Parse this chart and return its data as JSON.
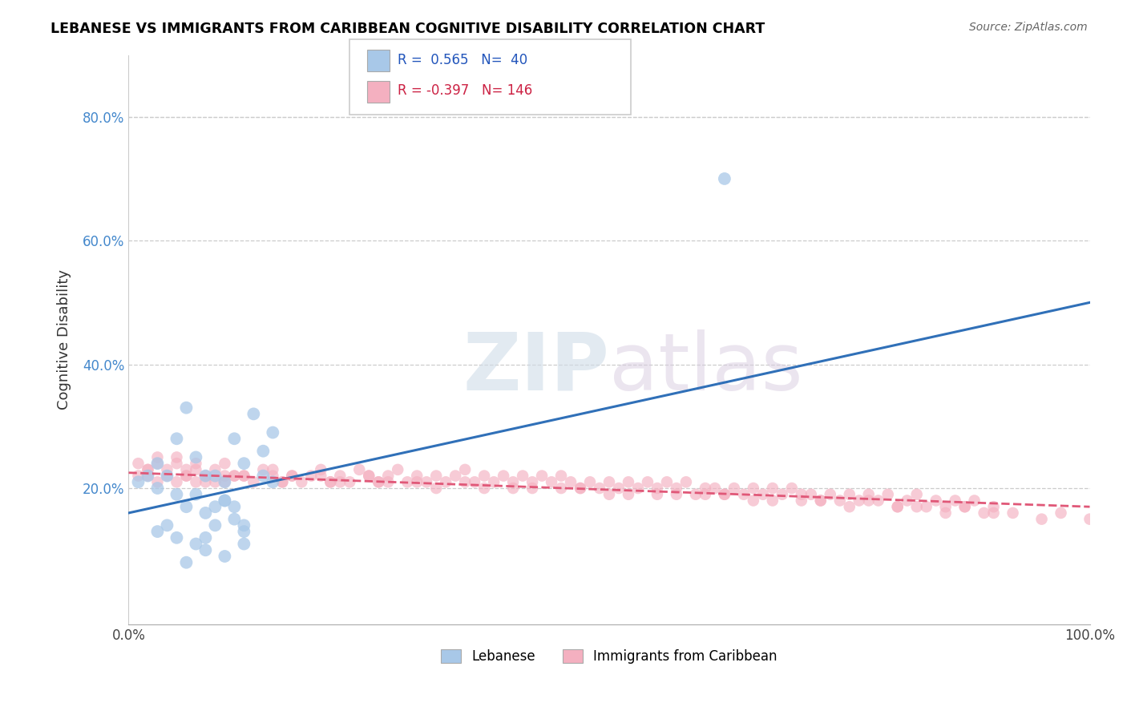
{
  "title": "LEBANESE VS IMMIGRANTS FROM CARIBBEAN COGNITIVE DISABILITY CORRELATION CHART",
  "source": "Source: ZipAtlas.com",
  "ylabel": "Cognitive Disability",
  "xlim": [
    0,
    100
  ],
  "ylim": [
    -2,
    90
  ],
  "watermark": "ZIPatlas",
  "legend_labels": [
    "Lebanese",
    "Immigrants from Caribbean"
  ],
  "blue_R": 0.565,
  "blue_N": 40,
  "pink_R": -0.397,
  "pink_N": 146,
  "blue_color": "#a8c8e8",
  "pink_color": "#f4b0c0",
  "blue_line_color": "#3070b8",
  "pink_line_color": "#e05878",
  "blue_scatter_x": [
    1,
    2,
    3,
    3,
    4,
    5,
    5,
    6,
    7,
    7,
    8,
    8,
    9,
    9,
    10,
    10,
    11,
    11,
    12,
    12,
    13,
    14,
    14,
    15,
    15,
    3,
    4,
    5,
    6,
    7,
    8,
    9,
    10,
    11,
    12,
    62,
    12,
    8,
    10,
    6
  ],
  "blue_scatter_y": [
    21,
    22,
    24,
    20,
    22,
    28,
    19,
    33,
    25,
    19,
    22,
    16,
    22,
    17,
    21,
    18,
    28,
    17,
    24,
    14,
    32,
    22,
    26,
    29,
    21,
    13,
    14,
    12,
    17,
    11,
    12,
    14,
    18,
    15,
    13,
    70,
    11,
    10,
    9,
    8
  ],
  "pink_scatter_x": [
    1,
    1,
    2,
    2,
    3,
    3,
    4,
    4,
    5,
    5,
    6,
    6,
    7,
    7,
    8,
    8,
    9,
    9,
    10,
    10,
    11,
    12,
    13,
    14,
    15,
    16,
    17,
    18,
    19,
    20,
    21,
    22,
    23,
    24,
    25,
    26,
    27,
    28,
    29,
    30,
    31,
    32,
    33,
    34,
    35,
    36,
    37,
    38,
    39,
    40,
    41,
    42,
    43,
    44,
    45,
    46,
    47,
    48,
    49,
    50,
    51,
    52,
    53,
    54,
    55,
    56,
    57,
    58,
    59,
    60,
    61,
    62,
    63,
    64,
    65,
    66,
    67,
    68,
    69,
    70,
    71,
    72,
    73,
    74,
    75,
    76,
    77,
    78,
    79,
    80,
    81,
    82,
    83,
    84,
    85,
    86,
    87,
    88,
    89,
    90,
    3,
    7,
    12,
    17,
    22,
    27,
    32,
    37,
    42,
    47,
    52,
    57,
    62,
    67,
    72,
    77,
    82,
    87,
    92,
    97,
    5,
    10,
    15,
    20,
    25,
    30,
    35,
    40,
    45,
    50,
    55,
    60,
    65,
    70,
    75,
    80,
    85,
    90,
    95,
    100,
    2,
    6,
    11,
    16,
    21,
    26
  ],
  "pink_scatter_y": [
    24,
    22,
    23,
    22,
    25,
    21,
    23,
    22,
    24,
    21,
    23,
    22,
    24,
    21,
    22,
    21,
    23,
    21,
    22,
    21,
    22,
    22,
    21,
    23,
    22,
    21,
    22,
    21,
    22,
    23,
    21,
    22,
    21,
    23,
    22,
    21,
    22,
    23,
    21,
    22,
    21,
    22,
    21,
    22,
    23,
    21,
    22,
    21,
    22,
    21,
    22,
    21,
    22,
    21,
    22,
    21,
    20,
    21,
    20,
    21,
    20,
    21,
    20,
    21,
    20,
    21,
    20,
    21,
    19,
    20,
    20,
    19,
    20,
    19,
    20,
    19,
    20,
    19,
    20,
    19,
    19,
    18,
    19,
    18,
    19,
    18,
    19,
    18,
    19,
    17,
    18,
    19,
    17,
    18,
    17,
    18,
    17,
    18,
    16,
    17,
    24,
    23,
    22,
    22,
    21,
    21,
    20,
    20,
    20,
    20,
    19,
    19,
    19,
    18,
    18,
    18,
    17,
    17,
    16,
    16,
    25,
    24,
    23,
    22,
    22,
    21,
    21,
    20,
    20,
    19,
    19,
    19,
    18,
    18,
    17,
    17,
    16,
    16,
    15,
    15,
    23,
    22,
    22,
    21,
    21,
    21
  ],
  "blue_line_x0": 0,
  "blue_line_x1": 100,
  "blue_line_y0": 16,
  "blue_line_y1": 50,
  "pink_line_x0": 0,
  "pink_line_x1": 100,
  "pink_line_y0": 22.5,
  "pink_line_y1": 17,
  "y_ticks": [
    0,
    20,
    40,
    60,
    80
  ],
  "y_tick_labels": [
    "",
    "20.0%",
    "40.0%",
    "60.0%",
    "80.0%"
  ],
  "x_ticks": [
    0,
    10,
    20,
    30,
    40,
    50,
    60,
    70,
    80,
    90,
    100
  ],
  "x_tick_labels": [
    "0.0%",
    "",
    "",
    "",
    "",
    "",
    "",
    "",
    "",
    "",
    "100.0%"
  ],
  "grid_color": "#cccccc",
  "background_color": "#ffffff"
}
